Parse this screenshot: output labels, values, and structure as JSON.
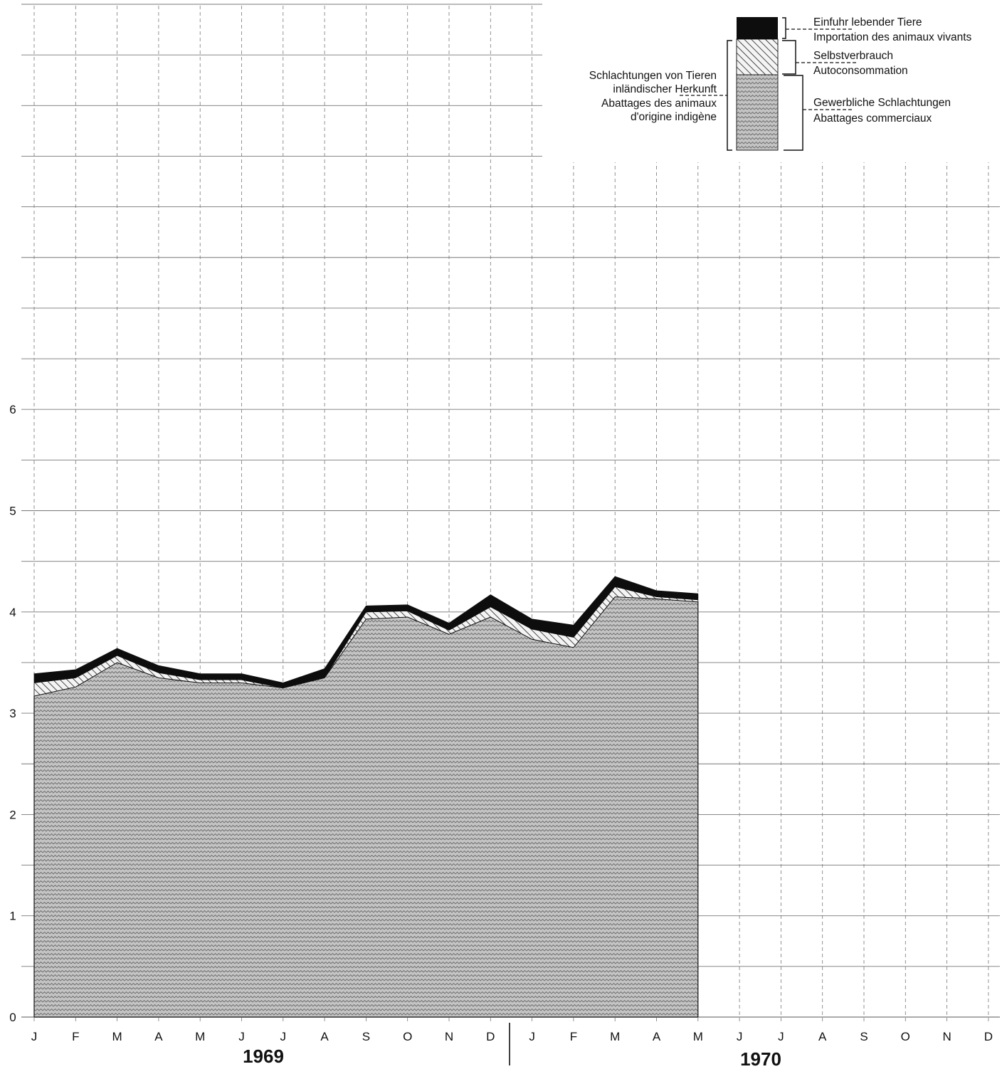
{
  "chart_data": {
    "type": "area",
    "stacked": true,
    "title": "",
    "xlabel": "",
    "ylabel": "",
    "ylim": [
      0,
      10
    ],
    "y_ticks": [
      0,
      1,
      2,
      3,
      4,
      5,
      6
    ],
    "grid": true,
    "legend_placement": "top-right",
    "months_1969": [
      "J",
      "F",
      "M",
      "A",
      "M",
      "J",
      "J",
      "A",
      "S",
      "O",
      "N",
      "D"
    ],
    "months_1970": [
      "J",
      "F",
      "M",
      "A",
      "M",
      "J",
      "J",
      "A",
      "S",
      "O",
      "N",
      "D"
    ],
    "years": [
      "1969",
      "1970"
    ],
    "x": [
      "1969-01",
      "1969-02",
      "1969-03",
      "1969-04",
      "1969-05",
      "1969-06",
      "1969-07",
      "1969-08",
      "1969-09",
      "1969-10",
      "1969-11",
      "1969-12",
      "1970-01",
      "1970-02",
      "1970-03",
      "1970-04",
      "1970-05"
    ],
    "series": [
      {
        "name": "Gewerbliche Schlachtungen",
        "values": [
          3.17,
          3.26,
          3.5,
          3.35,
          3.3,
          3.3,
          3.25,
          3.35,
          3.93,
          3.95,
          3.78,
          3.95,
          3.73,
          3.65,
          4.15,
          4.13,
          4.1
        ]
      },
      {
        "name": "Selbstverbrauch",
        "values": [
          0.13,
          0.09,
          0.07,
          0.05,
          0.03,
          0.03,
          0.0,
          0.0,
          0.07,
          0.06,
          0.04,
          0.1,
          0.1,
          0.1,
          0.1,
          0.02,
          0.02
        ]
      },
      {
        "name": "Einfuhr lebender Tiere",
        "values": [
          0.09,
          0.08,
          0.07,
          0.07,
          0.06,
          0.06,
          0.05,
          0.09,
          0.06,
          0.06,
          0.07,
          0.12,
          0.1,
          0.12,
          0.1,
          0.06,
          0.06
        ]
      }
    ],
    "legend": {
      "import_de": "Einfuhr lebender Tiere",
      "import_fr": "Importation des animaux vivants",
      "self_de": "Selbstverbrauch",
      "self_fr": "Autoconsommation",
      "commercial_de": "Gewerbliche Schlachtungen",
      "commercial_fr": "Abattages commerciaux",
      "domestic_de_1": "Schlachtungen von Tieren",
      "domestic_de_2": "inländischer Herkunft",
      "domestic_fr_1": "Abattages des animaux",
      "domestic_fr_2": "d'origine indigène"
    },
    "colors": {
      "commercial": "#b9b9b9",
      "self_consumption": "#ececec",
      "import": "#0d0d0d",
      "grid": "#777777"
    }
  }
}
